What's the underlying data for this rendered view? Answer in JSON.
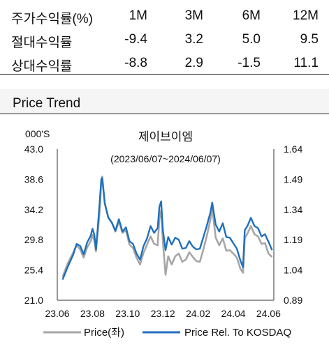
{
  "returns_table": {
    "headers": [
      "주가수익률(%)",
      "1M",
      "3M",
      "6M",
      "12M"
    ],
    "rows": [
      {
        "label": "절대수익률",
        "values": [
          "-9.4",
          "3.2",
          "5.0",
          "9.5"
        ]
      },
      {
        "label": "상대수익률",
        "values": [
          "-8.8",
          "2.9",
          "-1.5",
          "11.1"
        ]
      }
    ]
  },
  "section_title": "Price Trend",
  "chart_data": {
    "type": "line",
    "title": "제이브이엠",
    "subtitle": "(2023/06/07~2024/06/07)",
    "ylabel_left": "000'S",
    "left_ticks": [
      "43.0",
      "38.6",
      "34.2",
      "29.8",
      "25.4",
      "21.0"
    ],
    "right_ticks": [
      "1.64",
      "1.49",
      "1.34",
      "1.19",
      "1.04",
      "0.89"
    ],
    "x_ticks": [
      "23.06",
      "23.08",
      "23.10",
      "23.12",
      "24.02",
      "24.04",
      "24.06"
    ],
    "ylim_left": [
      21.0,
      43.0
    ],
    "ylim_right": [
      0.89,
      1.64
    ],
    "xlim": [
      0,
      12.3
    ],
    "grid": false,
    "legend_position": "bottom",
    "series": [
      {
        "name": "Price(좌)",
        "axis": "left",
        "color": "#a6a6a6",
        "points": [
          [
            0.3,
            24.4
          ],
          [
            0.6,
            26.4
          ],
          [
            0.9,
            27.9
          ],
          [
            1.1,
            29.0
          ],
          [
            1.3,
            28.4
          ],
          [
            1.5,
            27.2
          ],
          [
            1.7,
            28.7
          ],
          [
            1.9,
            29.6
          ],
          [
            2.0,
            30.5
          ],
          [
            2.1,
            29.7
          ],
          [
            2.2,
            28.1
          ],
          [
            2.3,
            31.0
          ],
          [
            2.4,
            33.6
          ],
          [
            2.5,
            38.2
          ],
          [
            2.55,
            39.0
          ],
          [
            2.7,
            35.1
          ],
          [
            2.9,
            33.0
          ],
          [
            3.1,
            32.3
          ],
          [
            3.3,
            31.0
          ],
          [
            3.5,
            32.5
          ],
          [
            3.7,
            30.8
          ],
          [
            3.9,
            31.2
          ],
          [
            4.1,
            29.1
          ],
          [
            4.3,
            28.6
          ],
          [
            4.5,
            27.2
          ],
          [
            4.7,
            26.2
          ],
          [
            4.9,
            27.9
          ],
          [
            5.1,
            29.1
          ],
          [
            5.3,
            30.3
          ],
          [
            5.5,
            29.2
          ],
          [
            5.7,
            29.0
          ],
          [
            5.8,
            32.9
          ],
          [
            5.9,
            34.1
          ],
          [
            6.0,
            29.5
          ],
          [
            6.15,
            24.7
          ],
          [
            6.3,
            27.4
          ],
          [
            6.5,
            26.2
          ],
          [
            6.7,
            27.4
          ],
          [
            6.9,
            27.8
          ],
          [
            7.1,
            26.6
          ],
          [
            7.3,
            26.9
          ],
          [
            7.5,
            28.0
          ],
          [
            7.7,
            27.3
          ],
          [
            7.9,
            26.7
          ],
          [
            8.1,
            26.6
          ],
          [
            8.3,
            28.4
          ],
          [
            8.5,
            30.4
          ],
          [
            8.7,
            32.8
          ],
          [
            8.8,
            34.4
          ],
          [
            9.0,
            30.1
          ],
          [
            9.2,
            29.0
          ],
          [
            9.4,
            30.0
          ],
          [
            9.6,
            28.2
          ],
          [
            9.8,
            28.3
          ],
          [
            10.0,
            27.8
          ],
          [
            10.2,
            27.2
          ],
          [
            10.4,
            25.6
          ],
          [
            10.55,
            25.0
          ],
          [
            10.65,
            30.0
          ],
          [
            10.8,
            30.7
          ],
          [
            11.0,
            31.8
          ],
          [
            11.2,
            30.6
          ],
          [
            11.4,
            30.3
          ],
          [
            11.6,
            29.2
          ],
          [
            11.8,
            29.3
          ],
          [
            12.0,
            27.8
          ],
          [
            12.2,
            27.3
          ]
        ]
      },
      {
        "name": "Price Rel. To KOSDAQ",
        "axis": "left",
        "color": "#1f6fbe",
        "points": [
          [
            0.3,
            24.0
          ],
          [
            0.6,
            25.9
          ],
          [
            0.9,
            27.6
          ],
          [
            1.1,
            29.2
          ],
          [
            1.3,
            28.9
          ],
          [
            1.5,
            27.7
          ],
          [
            1.7,
            29.4
          ],
          [
            1.9,
            30.4
          ],
          [
            2.0,
            31.4
          ],
          [
            2.1,
            30.6
          ],
          [
            2.2,
            28.4
          ],
          [
            2.3,
            31.6
          ],
          [
            2.4,
            35.0
          ],
          [
            2.5,
            38.6
          ],
          [
            2.55,
            38.8
          ],
          [
            2.7,
            35.1
          ],
          [
            2.9,
            33.0
          ],
          [
            3.1,
            32.3
          ],
          [
            3.3,
            31.1
          ],
          [
            3.5,
            32.8
          ],
          [
            3.7,
            31.0
          ],
          [
            3.9,
            31.6
          ],
          [
            4.1,
            29.6
          ],
          [
            4.3,
            29.2
          ],
          [
            4.5,
            27.8
          ],
          [
            4.7,
            26.9
          ],
          [
            4.9,
            28.9
          ],
          [
            5.1,
            30.0
          ],
          [
            5.3,
            31.8
          ],
          [
            5.5,
            30.8
          ],
          [
            5.7,
            31.5
          ],
          [
            5.8,
            34.6
          ],
          [
            5.9,
            35.4
          ],
          [
            6.0,
            31.2
          ],
          [
            6.15,
            28.3
          ],
          [
            6.3,
            30.2
          ],
          [
            6.5,
            29.1
          ],
          [
            6.7,
            30.1
          ],
          [
            6.9,
            29.8
          ],
          [
            7.1,
            28.5
          ],
          [
            7.3,
            28.6
          ],
          [
            7.5,
            29.6
          ],
          [
            7.7,
            28.8
          ],
          [
            7.9,
            28.4
          ],
          [
            8.1,
            28.5
          ],
          [
            8.3,
            30.2
          ],
          [
            8.5,
            31.9
          ],
          [
            8.7,
            33.8
          ],
          [
            8.8,
            35.2
          ],
          [
            9.0,
            32.0
          ],
          [
            9.2,
            31.0
          ],
          [
            9.4,
            32.2
          ],
          [
            9.6,
            30.2
          ],
          [
            9.8,
            30.1
          ],
          [
            10.0,
            29.3
          ],
          [
            10.2,
            28.5
          ],
          [
            10.4,
            26.8
          ],
          [
            10.55,
            25.8
          ],
          [
            10.65,
            31.2
          ],
          [
            10.8,
            31.8
          ],
          [
            11.0,
            33.0
          ],
          [
            11.2,
            31.8
          ],
          [
            11.4,
            31.5
          ],
          [
            11.6,
            30.3
          ],
          [
            11.8,
            30.6
          ],
          [
            12.0,
            29.5
          ],
          [
            12.2,
            28.3
          ]
        ]
      }
    ]
  }
}
